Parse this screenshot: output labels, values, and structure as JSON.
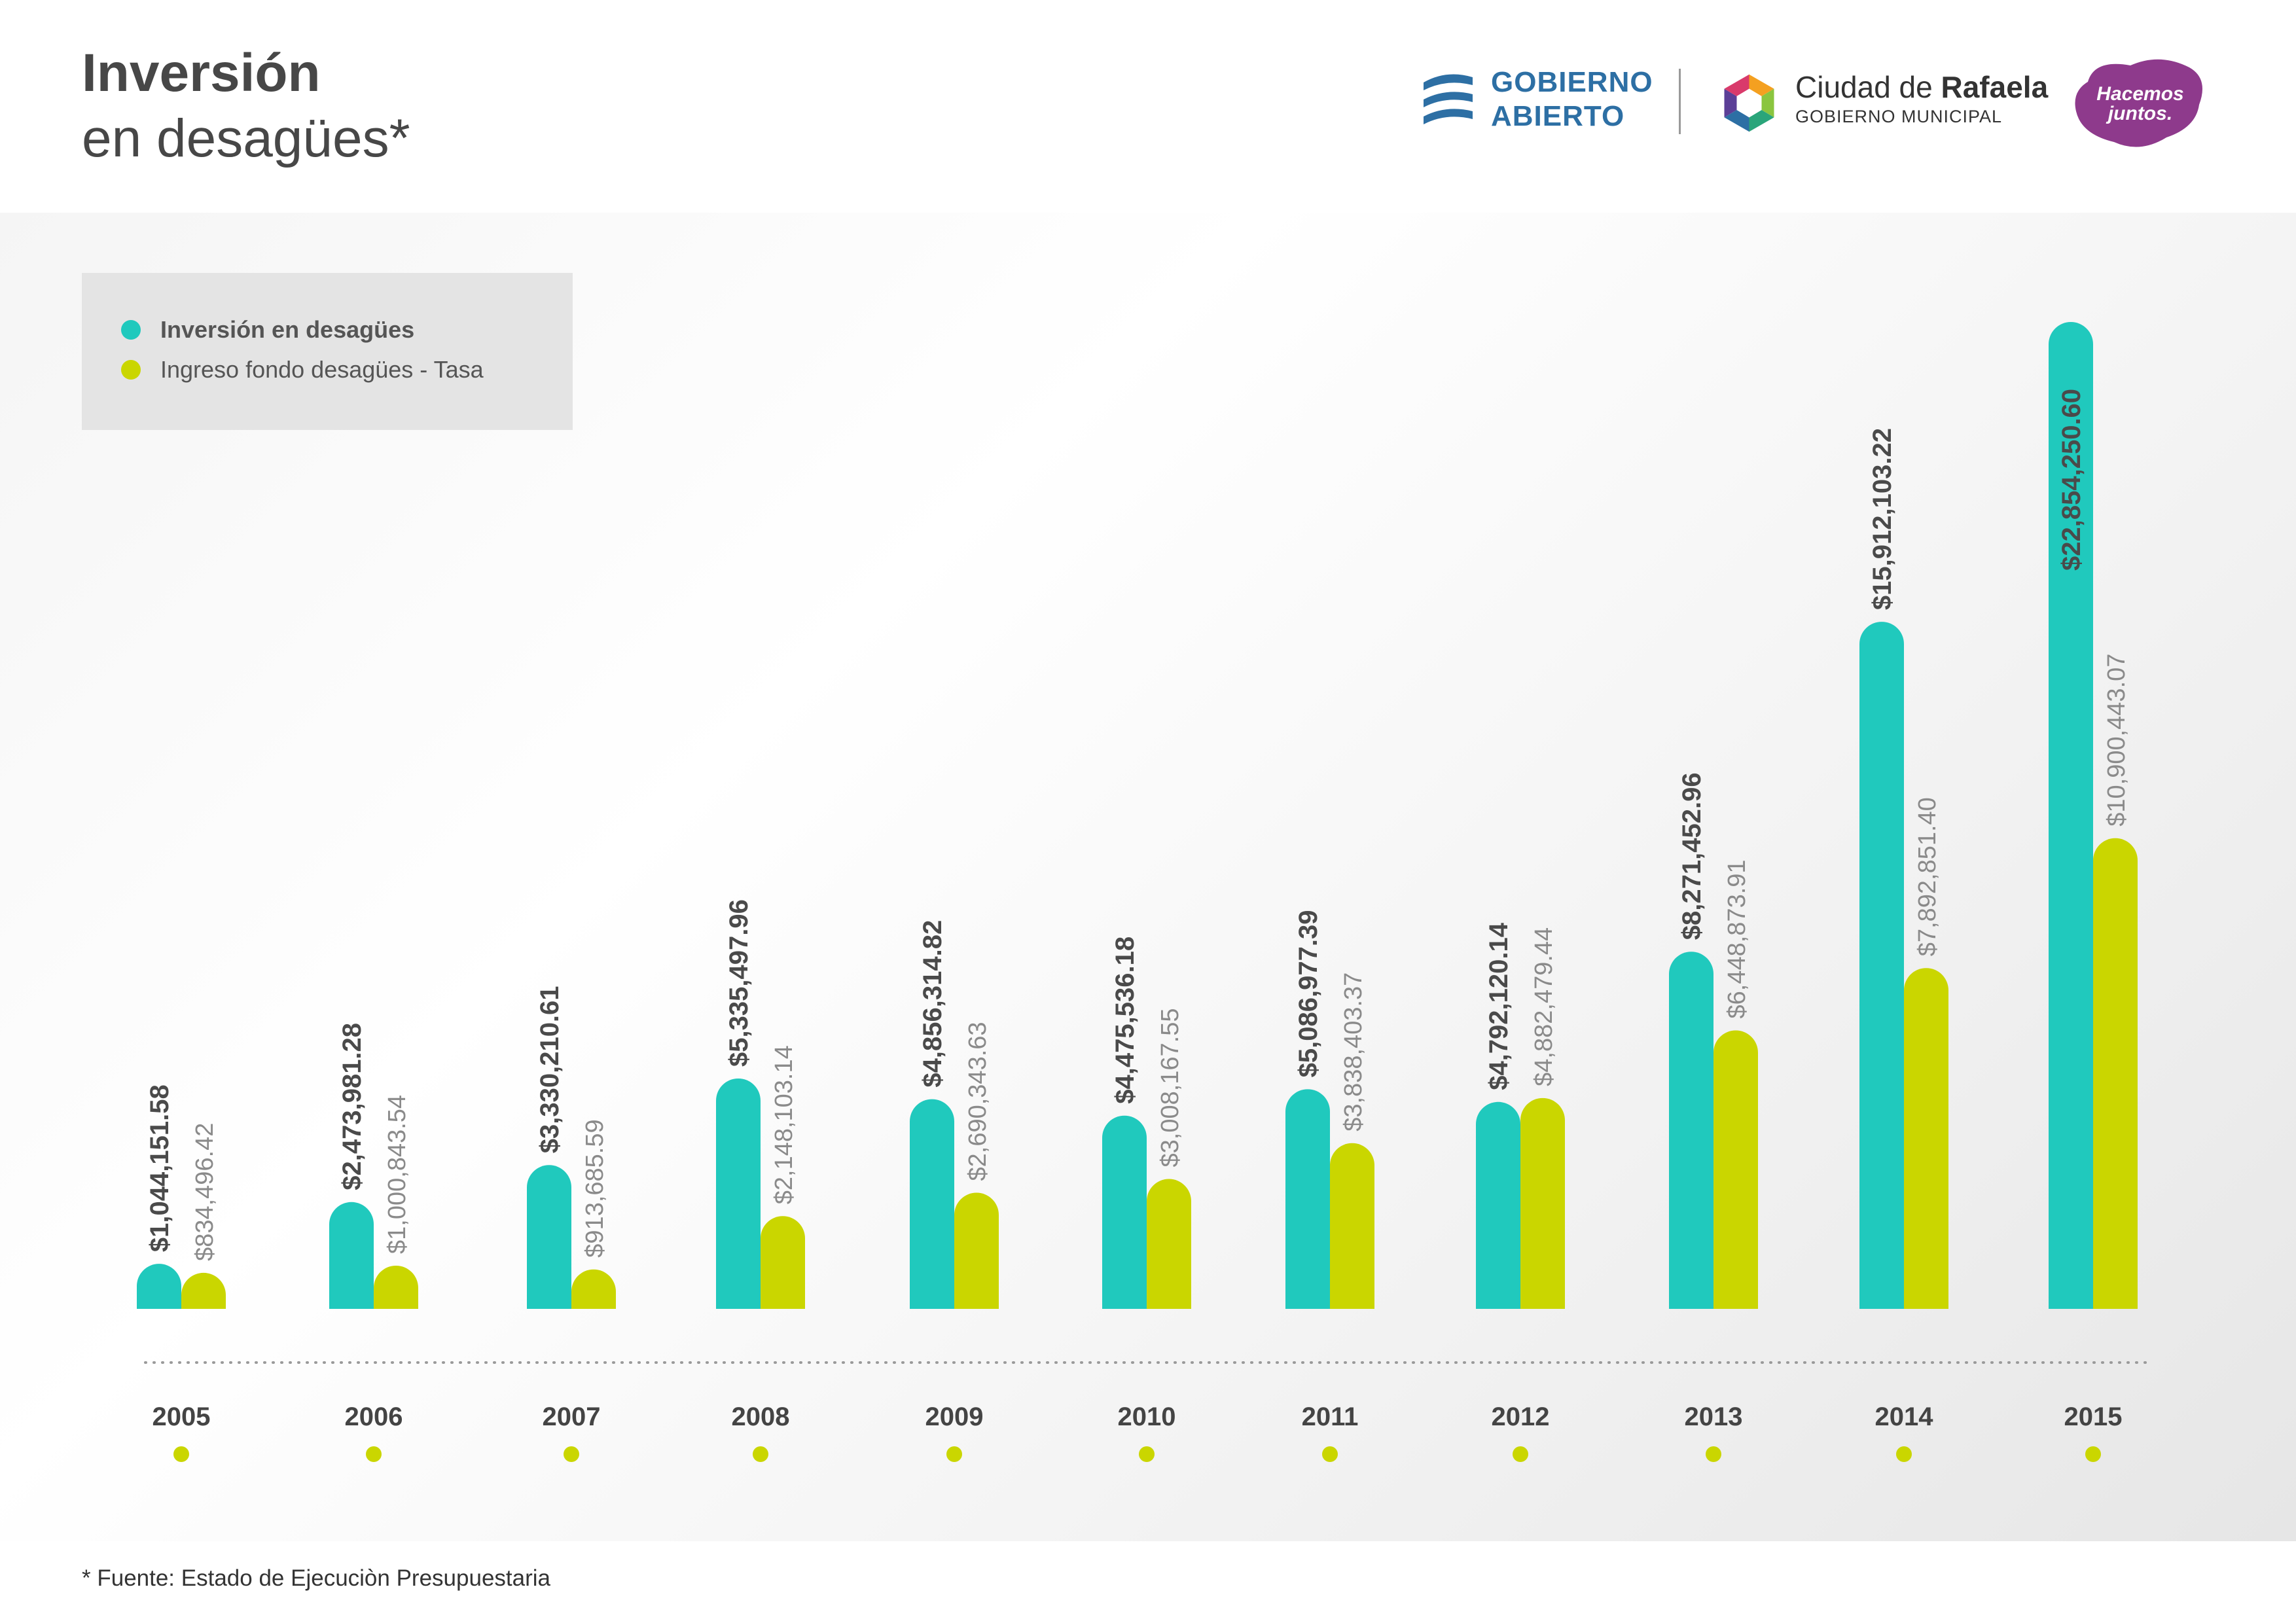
{
  "header": {
    "title_line1": "Inversión",
    "title_line2": "en desagües*"
  },
  "logos": {
    "gobierno_abierto": [
      "GOBIERNO",
      "ABIERTO"
    ],
    "ciudad_prefix": "Ciudad de",
    "ciudad_name": "Rafaela",
    "ciudad_sub": "GOBIERNO MUNICIPAL",
    "hacemos": [
      "Hacemos",
      "juntos."
    ]
  },
  "colors": {
    "inversion": "#20c9bd",
    "ingreso": "#cad600",
    "value_text_bold": "#4a4a4a",
    "value_text_light": "#8a8a8a",
    "year_text": "#444444"
  },
  "chart_data": {
    "type": "bar",
    "title": "Inversión en desagües*",
    "categories": [
      "2005",
      "2006",
      "2007",
      "2008",
      "2009",
      "2010",
      "2011",
      "2012",
      "2013",
      "2014",
      "2015"
    ],
    "series": [
      {
        "name": "Inversión en desagües",
        "values": [
          1044151.58,
          2473981.28,
          3330210.61,
          5335497.96,
          4856314.82,
          4475536.18,
          5086977.39,
          4792120.14,
          8271452.96,
          15912103.22,
          22854250.6
        ],
        "labels": [
          "$1,044,151.58",
          "$2,473,981.28",
          "$3,330,210.61",
          "$5,335,497.96",
          "$4,856,314.82",
          "$4,475,536.18",
          "$5,086,977.39",
          "$4,792,120.14",
          "$8,271,452.96",
          "$15,912,103.22",
          "$22,854,250.60"
        ]
      },
      {
        "name": "Ingreso fondo desagües - Tasa",
        "values": [
          834496.42,
          1000843.54,
          913685.59,
          2148103.14,
          2690343.63,
          3008167.55,
          3838403.37,
          4882479.44,
          6448873.91,
          7892851.4,
          10900443.07
        ],
        "labels": [
          "$834,496.42",
          "$1,000,843.54",
          "$913,685.59",
          "$2,148,103.14",
          "$2,690,343.63",
          "$3,008,167.55",
          "$3,838,403.37",
          "$4,882,479.44",
          "$6,448,873.91",
          "$7,892,851.40",
          "$10,900,443.07"
        ]
      }
    ],
    "legend": "top-left",
    "grid": false
  },
  "footer": {
    "source": "* Fuente: Estado de Ejecuciòn Presupuestaria"
  }
}
